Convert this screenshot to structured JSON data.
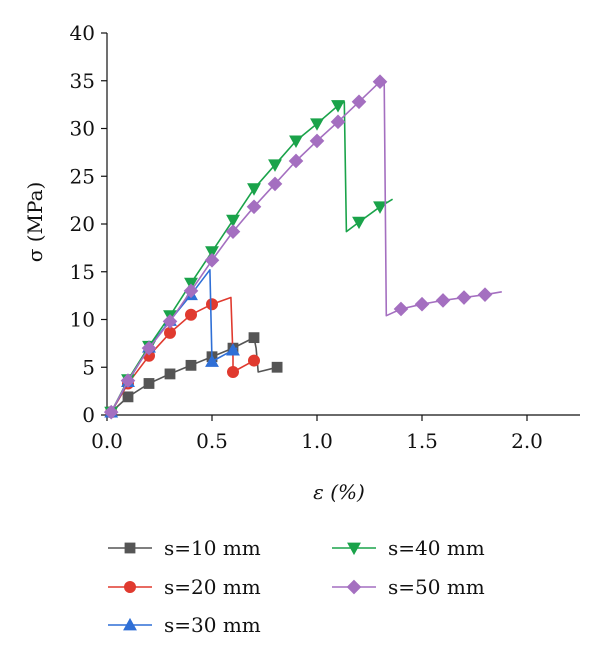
{
  "chart_data": {
    "type": "line",
    "xlabel": "ε (%)",
    "ylabel": "σ (MPa)",
    "xlim": [
      0,
      2.25
    ],
    "ylim": [
      0,
      40
    ],
    "xticks": [
      "0.0",
      "0.5",
      "1.0",
      "1.5",
      "2.0"
    ],
    "yticks": [
      "0",
      "5",
      "10",
      "15",
      "20",
      "25",
      "30",
      "35",
      "40"
    ],
    "grid": false,
    "legend": "bottom",
    "series": [
      {
        "name": "s=10 mm",
        "color": "#555555",
        "marker": "square",
        "line": [
          [
            0.02,
            0.3
          ],
          [
            0.1,
            1.9
          ],
          [
            0.2,
            3.3
          ],
          [
            0.3,
            4.3
          ],
          [
            0.4,
            5.2
          ],
          [
            0.5,
            6.1
          ],
          [
            0.6,
            7.0
          ],
          [
            0.7,
            8.1
          ],
          [
            0.71,
            7.0
          ],
          [
            0.72,
            4.5
          ],
          [
            0.81,
            5.0
          ]
        ],
        "markers": [
          [
            0.02,
            0.3
          ],
          [
            0.1,
            1.9
          ],
          [
            0.2,
            3.3
          ],
          [
            0.3,
            4.3
          ],
          [
            0.4,
            5.2
          ],
          [
            0.5,
            6.1
          ],
          [
            0.6,
            7.0
          ],
          [
            0.7,
            8.1
          ],
          [
            0.81,
            5.0
          ]
        ]
      },
      {
        "name": "s=20 mm",
        "color": "#e03a2f",
        "marker": "circle",
        "line": [
          [
            0.02,
            0.3
          ],
          [
            0.1,
            3.3
          ],
          [
            0.2,
            6.2
          ],
          [
            0.3,
            8.6
          ],
          [
            0.4,
            10.5
          ],
          [
            0.5,
            11.6
          ],
          [
            0.59,
            12.3
          ],
          [
            0.6,
            6.0
          ],
          [
            0.6,
            4.5
          ],
          [
            0.7,
            5.7
          ],
          [
            0.71,
            5.5
          ]
        ],
        "markers": [
          [
            0.02,
            0.3
          ],
          [
            0.1,
            3.3
          ],
          [
            0.2,
            6.2
          ],
          [
            0.3,
            8.6
          ],
          [
            0.4,
            10.5
          ],
          [
            0.5,
            11.6
          ],
          [
            0.6,
            4.5
          ],
          [
            0.7,
            5.7
          ]
        ]
      },
      {
        "name": "s=30 mm",
        "color": "#2f6fd6",
        "marker": "triangle-up",
        "line": [
          [
            0.02,
            0.3
          ],
          [
            0.1,
            3.5
          ],
          [
            0.2,
            7.1
          ],
          [
            0.3,
            9.9
          ],
          [
            0.4,
            12.6
          ],
          [
            0.49,
            15.2
          ],
          [
            0.5,
            5.6
          ],
          [
            0.6,
            6.8
          ],
          [
            0.62,
            7.0
          ]
        ],
        "markers": [
          [
            0.02,
            0.3
          ],
          [
            0.1,
            3.5
          ],
          [
            0.2,
            7.1
          ],
          [
            0.3,
            9.9
          ],
          [
            0.4,
            12.6
          ],
          [
            0.5,
            5.6
          ],
          [
            0.6,
            6.8
          ]
        ]
      },
      {
        "name": "s=40 mm",
        "color": "#1aa34a",
        "marker": "triangle-down",
        "line": [
          [
            0.02,
            0.3
          ],
          [
            0.1,
            3.7
          ],
          [
            0.2,
            7.2
          ],
          [
            0.3,
            10.4
          ],
          [
            0.4,
            13.8
          ],
          [
            0.5,
            17.1
          ],
          [
            0.6,
            20.4
          ],
          [
            0.7,
            23.7
          ],
          [
            0.8,
            26.2
          ],
          [
            0.9,
            28.7
          ],
          [
            1.0,
            30.5
          ],
          [
            1.1,
            32.4
          ],
          [
            1.13,
            32.8
          ],
          [
            1.14,
            19.2
          ],
          [
            1.2,
            20.2
          ],
          [
            1.3,
            21.8
          ],
          [
            1.36,
            22.6
          ]
        ],
        "markers": [
          [
            0.02,
            0.3
          ],
          [
            0.1,
            3.7
          ],
          [
            0.2,
            7.2
          ],
          [
            0.3,
            10.4
          ],
          [
            0.4,
            13.8
          ],
          [
            0.5,
            17.1
          ],
          [
            0.6,
            20.4
          ],
          [
            0.7,
            23.7
          ],
          [
            0.8,
            26.2
          ],
          [
            0.9,
            28.7
          ],
          [
            1.0,
            30.5
          ],
          [
            1.1,
            32.4
          ],
          [
            1.2,
            20.2
          ],
          [
            1.3,
            21.8
          ]
        ]
      },
      {
        "name": "s=50 mm",
        "color": "#a46fc0",
        "marker": "diamond",
        "line": [
          [
            0.02,
            0.3
          ],
          [
            0.1,
            3.6
          ],
          [
            0.2,
            7.0
          ],
          [
            0.3,
            9.8
          ],
          [
            0.4,
            13.0
          ],
          [
            0.5,
            16.2
          ],
          [
            0.6,
            19.2
          ],
          [
            0.7,
            21.8
          ],
          [
            0.8,
            24.2
          ],
          [
            0.9,
            26.6
          ],
          [
            1.0,
            28.7
          ],
          [
            1.1,
            30.7
          ],
          [
            1.2,
            32.8
          ],
          [
            1.3,
            34.9
          ],
          [
            1.32,
            34.9
          ],
          [
            1.33,
            10.4
          ],
          [
            1.4,
            11.1
          ],
          [
            1.5,
            11.6
          ],
          [
            1.6,
            12.0
          ],
          [
            1.7,
            12.3
          ],
          [
            1.8,
            12.6
          ],
          [
            1.88,
            12.9
          ]
        ],
        "markers": [
          [
            0.02,
            0.3
          ],
          [
            0.1,
            3.6
          ],
          [
            0.2,
            7.0
          ],
          [
            0.3,
            9.8
          ],
          [
            0.4,
            13.0
          ],
          [
            0.5,
            16.2
          ],
          [
            0.6,
            19.2
          ],
          [
            0.7,
            21.8
          ],
          [
            0.8,
            24.2
          ],
          [
            0.9,
            26.6
          ],
          [
            1.0,
            28.7
          ],
          [
            1.1,
            30.7
          ],
          [
            1.2,
            32.8
          ],
          [
            1.3,
            34.9
          ],
          [
            1.4,
            11.1
          ],
          [
            1.5,
            11.6
          ],
          [
            1.6,
            12.0
          ],
          [
            1.7,
            12.3
          ],
          [
            1.8,
            12.6
          ]
        ]
      }
    ]
  }
}
